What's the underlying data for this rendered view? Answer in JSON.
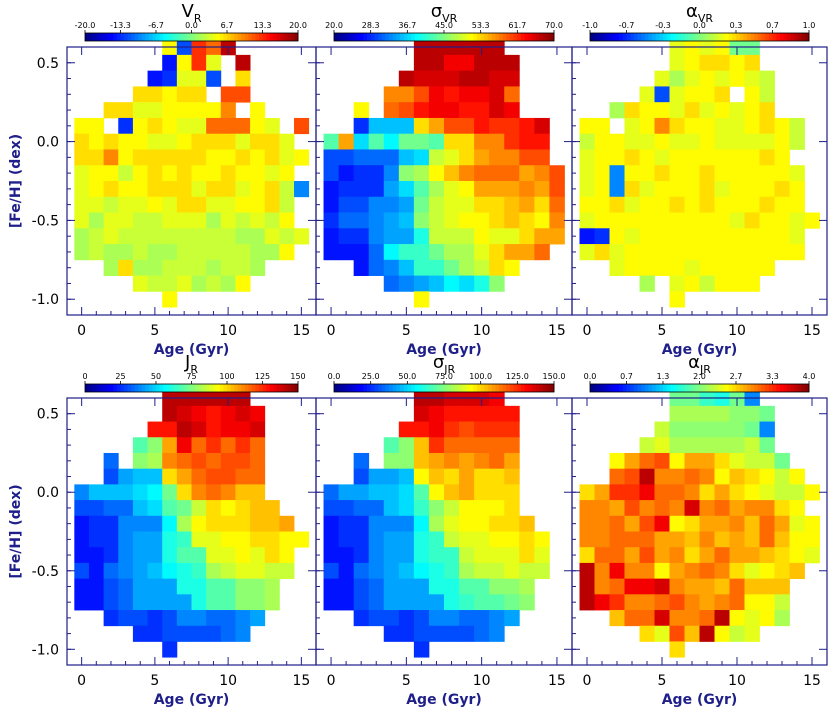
{
  "figure": {
    "shared_xlabel": "Age (Gyr)",
    "shared_ylabel": "[Fe/H] (dex)"
  },
  "chart_data": [
    {
      "type": "heatmap",
      "title": "V_R",
      "xlabel": "Age (Gyr)",
      "ylabel": "[Fe/H] (dex)",
      "xlim": [
        -1,
        16
      ],
      "ylim": [
        -1.1,
        0.6
      ],
      "xticks": [
        "0",
        "5",
        "10",
        "15"
      ],
      "yticks": [
        "0.5",
        "0.0",
        "-0.5",
        "-1.0"
      ],
      "colorbar": {
        "min": -20,
        "max": 20,
        "ticks": [
          "-20.0",
          "-13.3",
          "-6.7",
          "0.0",
          "6.7",
          "13.3",
          "20.0"
        ]
      },
      "grid": {
        "x0": -0.5,
        "dx": 1,
        "y0": -1.05,
        "dy": 0.1,
        "rows": [
          "......m7trx.....",
          "......5mtl.x....",
          ".....56ll7.n....",
          "....nnmnn.ss....",
          "..nnllmmmmq.m...",
          "mm.6mnmllrrrml.s",
          "nmnmmllmnnnlnnl.",
          "nnqmnnnnnmmnmnlm",
          "lmmkmnmnmmnmmlm.",
          "lmnmmnnnlnnlmnk9",
          "llkllmlnnllmmnk.",
          "ljllkkllljlklkm.",
          "jklkkkkkkkkjjlkl",
          "jkjjkjjkkkkkjjm.",
          "..jnjjkkkjkkj...",
          "....lkkljkjm....",
          "......m........."
        ]
      }
    },
    {
      "type": "heatmap",
      "title": "σ_VR",
      "xlabel": "Age (Gyr)",
      "ylabel": "",
      "xlim": [
        -1,
        16
      ],
      "ylim": [
        -1.1,
        0.6
      ],
      "xticks": [
        "0",
        "5",
        "10",
        "15"
      ],
      "yticks": [
        "0.5",
        "0.0",
        "-0.5",
        "-1.0"
      ],
      "colorbar": {
        "min": 20,
        "max": 70,
        "ticks": [
          "20.0",
          "28.3",
          "36.7",
          "45.0",
          "53.3",
          "61.7",
          "70.0"
        ]
      },
      "grid": {
        "x0": -0.5,
        "dx": 1,
        "y0": -1.05,
        "dy": 0.1,
        "rows": [
          "......xxxxxx....",
          "......xxvvxxx...",
          ".....xwwwxxww...",
          "....qqsvuvvwr...",
          "..m.rsuvvuuwv...",
          "..6bbbnpssuttuw.",
          "gpcgdhhgnnqqtuu.",
          "77888bcklnpqqss.",
          "75669ijmoqrrrpqs",
          "5666acgjlmpppqps",
          "57799ahkllnnopnr",
          "6889abiklmmnonmq",
          "5669aaekkkmllnpp",
          "5558dffhjjlnppr.",
          "..589bffhjknm...",
          "....89abdcei....",
          "......m........."
        ]
      }
    },
    {
      "type": "heatmap",
      "title": "α_VR",
      "xlabel": "Age (Gyr)",
      "ylabel": "",
      "xlim": [
        -1,
        16
      ],
      "ylim": [
        -1.1,
        0.6
      ],
      "xticks": [
        "0",
        "5",
        "10",
        "15"
      ],
      "yticks": [
        "0.5",
        "0.0",
        "-0.5",
        "-1.0"
      ],
      "colorbar": {
        "min": -1.0,
        "max": 1.0,
        "ticks": [
          "-1.0",
          "-0.7",
          "-0.3",
          "0.0",
          "0.3",
          "0.7",
          "1.0"
        ]
      },
      "grid": {
        "x0": -0.5,
        "dx": 1,
        "y0": -1.05,
        "dy": 0.1,
        "rows": [
          "......lmlmhh....",
          "......lmnnmn....",
          ".....ljlmlmlk...",
          "....l7lmmn.mk...",
          "..jnmmlnlmlmn...",
          "mm.lmqnmmllmnmk.",
          "kmmllmllmllllmk.",
          "lmmnmlmmmmmmnm..",
          "lm9mmnmmnmmmmml.",
          "lm9nlmmmnlmmmnm.",
          "mmnlmmnmnmmmnmm.",
          "lmmmmmmmmmlnmmlm",
          "56mlmmmmmmmmmml.",
          "lnlmmmmmmmmmmmm.",
          "..lmmmmlmmmmm...",
          "....j.lmkmmm....",
          "......m........."
        ]
      }
    },
    {
      "type": "heatmap",
      "title": "J_R",
      "xlabel": "Age (Gyr)",
      "ylabel": "[Fe/H] (dex)",
      "xlim": [
        -1,
        16
      ],
      "ylim": [
        -1.1,
        0.6
      ],
      "xticks": [
        "0",
        "5",
        "10",
        "15"
      ],
      "yticks": [
        "0.5",
        "0.0",
        "-0.5",
        "-1.0"
      ],
      "colorbar": {
        "min": 0,
        "max": 150,
        "ticks": [
          "0",
          "25",
          "50",
          "75",
          "100",
          "125",
          "150"
        ]
      },
      "grid": {
        "x0": -0.5,
        "dx": 1,
        "y0": -1.05,
        "dy": 0.1,
        "rows": [
          "......xxxxxx....",
          "......xwvuvwv...",
          ".....uuxwuvvw...",
          "....gipvrtrtr...",
          "..8.ijqrsrssr...",
          "..7abbnprssrr...",
          "9bbbcdhnqrqoo...",
          "7788bcghknmnoo..",
          "566999djmnnnoop.",
          "5669aaefllmmnnmm",
          "5569aaeggllmlnm.",
          "7589abdefjkllkk.",
          "5578aaaeeggiij..",
          "5578aaaaeggiij..",
          "..6776799889a...",
          "....66777789....",
          "......6........."
        ]
      }
    },
    {
      "type": "heatmap",
      "title": "σ_JR",
      "xlabel": "Age (Gyr)",
      "ylabel": "",
      "xlim": [
        -1,
        16
      ],
      "ylim": [
        -1.1,
        0.6
      ],
      "xticks": [
        "0",
        "5",
        "10",
        "15"
      ],
      "yticks": [
        "0.5",
        "0.0",
        "-0.5",
        "-1.0"
      ],
      "colorbar": {
        "min": 0,
        "max": 150,
        "ticks": [
          "0.0",
          "25.0",
          "50.0",
          "75.0",
          "100.0",
          "125.0",
          "150.0"
        ]
      },
      "grid": {
        "x0": -0.5,
        "dx": 1,
        "y0": -1.05,
        "dy": 0.1,
        "rows": [
          "......xxwwwv....",
          "......wvuuuuu...",
          ".....uuvtsttt...",
          "....giotrrrrr...",
          "..8.iiopqpqrp...",
          "..7aabmonpnno...",
          "8aabbcgmopnnn...",
          "7788bcfikmmmn...",
          "566999djlmmnno..",
          "5669aaefkllmmnm.",
          "5569aaeffklllnl.",
          "7589abdefjkklkk.",
          "5578aaaeeggiij..",
          "5578aaaaefgghi..",
          "..6776799889a...",
          "....66777789....",
          "......6........."
        ]
      }
    },
    {
      "type": "heatmap",
      "title": "α_JR",
      "xlabel": "Age (Gyr)",
      "ylabel": "",
      "xlim": [
        -1,
        16
      ],
      "ylim": [
        -1.1,
        0.6
      ],
      "xticks": [
        "0",
        "5",
        "10",
        "15"
      ],
      "yticks": [
        "0.5",
        "0.0",
        "-0.5",
        "-1.0"
      ],
      "colorbar": {
        "min": 0.0,
        "max": 4.0,
        "ticks": [
          "0.0",
          "0.7",
          "1.3",
          "2.0",
          "2.7",
          "3.3",
          "4.0"
        ]
      },
      "grid": {
        "x0": -0.5,
        "dx": 1,
        "y0": -1.05,
        "dy": 0.1,
        "rows": [
          "......hhfeh9....",
          "......jjjjiih...",
          ".....kiiiiih9...",
          "....kljjjjjkh...",
          "..mprsmppnlkkh..",
          "..rsxqqrqmonmkm.",
          "npttvrrqnpnmlkkm",
          "qqpsqrqwqrpqqnm.",
          "qqrpsvmnppqorplm",
          "qqrrrppoqoporomm",
          "nrrpspqnprpponml",
          "xqvqqmpqrqnlmno.",
          "xqrvvwqpporooo..",
          "xvtqqrsqpqrmmk..",
          "..orrwqqrxmlmj..",
          "....nlsoxmkl....",
          "......n........."
        ]
      }
    }
  ]
}
